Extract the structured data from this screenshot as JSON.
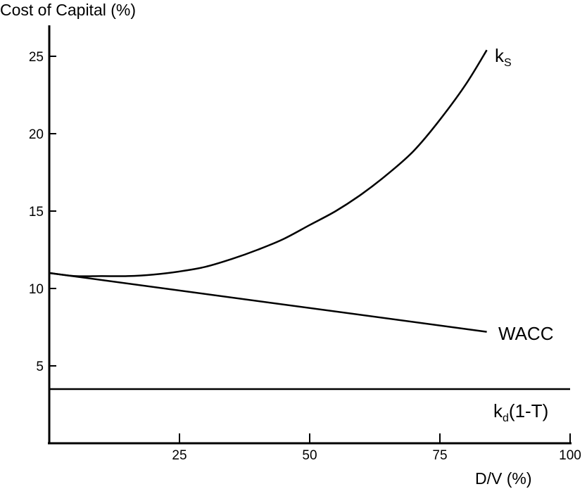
{
  "chart_data": {
    "type": "line",
    "title": "",
    "ylabel": "Cost of Capital (%)",
    "xlabel": "D/V (%)",
    "xlim": [
      0,
      100
    ],
    "ylim": [
      0,
      27
    ],
    "x_ticks": [
      25,
      50,
      75,
      100
    ],
    "y_ticks": [
      5,
      10,
      15,
      20,
      25
    ],
    "grid": false,
    "series": [
      {
        "name": "ks",
        "label_main": "k",
        "label_sub": "S",
        "label_tail": "",
        "x": [
          0,
          5,
          10,
          15,
          20,
          25,
          30,
          35,
          40,
          45,
          50,
          55,
          60,
          65,
          70,
          75,
          80,
          84
        ],
        "values": [
          11.0,
          10.8,
          10.8,
          10.8,
          10.9,
          11.1,
          11.4,
          11.9,
          12.5,
          13.2,
          14.1,
          15.0,
          16.1,
          17.4,
          18.9,
          20.9,
          23.2,
          25.4
        ]
      },
      {
        "name": "WACC",
        "label_main": "WACC",
        "label_sub": "",
        "label_tail": "",
        "x": [
          0,
          84
        ],
        "values": [
          11.0,
          7.2
        ]
      },
      {
        "name": "kd(1-T)",
        "label_main": "k",
        "label_sub": "d",
        "label_tail": "(1-T)",
        "x": [
          0,
          100
        ],
        "values": [
          3.5,
          3.5
        ]
      }
    ]
  }
}
